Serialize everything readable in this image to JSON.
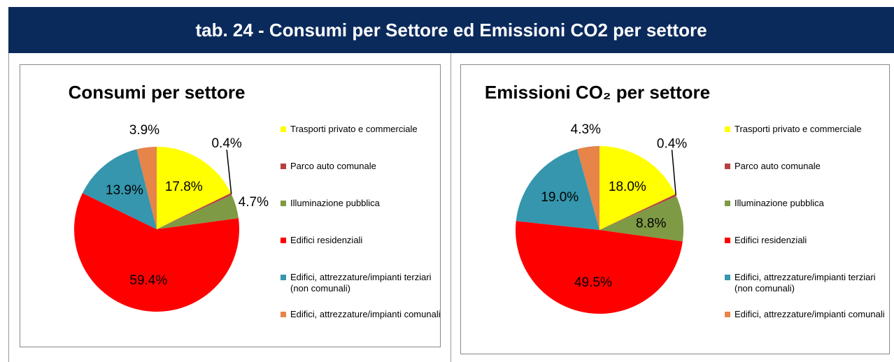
{
  "header": {
    "title": "tab. 24 - Consumi per Settore ed Emissioni CO2 per settore"
  },
  "chart_data": [
    {
      "type": "pie",
      "title": "Consumi per settore",
      "categories": [
        "Trasporti privato e commerciale",
        "Parco auto comunale",
        "Illuminazione pubblica",
        "Edifici residenziali",
        "Edifici, attrezzature/impianti terziari (non comunali)",
        "Edifici, attrezzature/impianti comunali"
      ],
      "values": [
        17.8,
        0.4,
        4.7,
        59.4,
        13.9,
        3.9
      ],
      "value_labels": [
        "17.8%",
        "0.4%",
        "4.7%",
        "59.4%",
        "13.9%",
        "3.9%"
      ],
      "colors": [
        "#ffff00",
        "#b5413f",
        "#7f9a45",
        "#ff0000",
        "#3596ad",
        "#e6844a"
      ]
    },
    {
      "type": "pie",
      "title": "Emissioni CO₂ per settore",
      "categories": [
        "Trasporti privato e commerciale",
        "Parco auto comunale",
        "Illuminazione pubblica",
        "Edifici residenziali",
        "Edifici, attrezzature/impianti terziari (non comunali)",
        "Edifici, attrezzature/impianti comunali"
      ],
      "values": [
        18.0,
        0.4,
        8.8,
        49.5,
        19.0,
        4.3
      ],
      "value_labels": [
        "18.0%",
        "0.4%",
        "8.8%",
        "49.5%",
        "19.0%",
        "4.3%"
      ],
      "colors": [
        "#ffff00",
        "#b5413f",
        "#7f9a45",
        "#ff0000",
        "#3596ad",
        "#e6844a"
      ]
    }
  ]
}
